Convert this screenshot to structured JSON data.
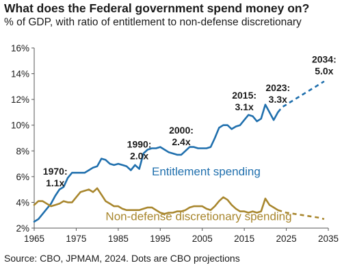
{
  "header": {
    "title": "What does the Federal government spend money on?",
    "subtitle": "% of GDP, with ratio of entitlement to non-defense discretionary"
  },
  "footer": {
    "source": "Source: CBO, JPMAM, 2024. Dots are CBO projections"
  },
  "chart_data": {
    "type": "line",
    "title": "What does the Federal government spend money on?",
    "subtitle": "% of GDP, with ratio of entitlement to non-defense discretionary",
    "xlim": [
      1965,
      2035
    ],
    "ylim": [
      2,
      16
    ],
    "x_ticks": [
      1965,
      1975,
      1985,
      1995,
      2005,
      2015,
      2025,
      2035
    ],
    "x_tick_labels": [
      "1965",
      "1975",
      "1985",
      "1995",
      "2005",
      "2015",
      "2025",
      "2035"
    ],
    "y_ticks": [
      2,
      4,
      6,
      8,
      10,
      12,
      14,
      16
    ],
    "y_tick_labels": [
      "2%",
      "4%",
      "6%",
      "8%",
      "10%",
      "12%",
      "14%",
      "16%"
    ],
    "grid": false,
    "series": [
      {
        "name": "Entitlement spending",
        "color": "#1f6fad",
        "x": [
          1965,
          1966,
          1967,
          1968,
          1969,
          1970,
          1971,
          1972,
          1973,
          1974,
          1975,
          1976,
          1977,
          1978,
          1979,
          1980,
          1981,
          1982,
          1983,
          1984,
          1985,
          1986,
          1987,
          1988,
          1989,
          1990,
          1991,
          1992,
          1993,
          1994,
          1995,
          1996,
          1997,
          1998,
          1999,
          2000,
          2001,
          2002,
          2003,
          2004,
          2005,
          2006,
          2007,
          2008,
          2009,
          2010,
          2011,
          2012,
          2013,
          2014,
          2015,
          2016,
          2017,
          2018,
          2019,
          2020,
          2021,
          2022,
          2023
        ],
        "y": [
          2.5,
          2.7,
          3.1,
          3.5,
          3.9,
          4.5,
          5.0,
          5.2,
          5.9,
          6.3,
          6.3,
          6.3,
          6.3,
          6.5,
          6.7,
          6.8,
          7.4,
          7.3,
          7.0,
          6.9,
          7.0,
          6.9,
          6.8,
          6.5,
          6.9,
          6.6,
          7.8,
          8.1,
          8.2,
          8.2,
          8.3,
          8.1,
          7.9,
          7.8,
          7.7,
          7.7,
          8.0,
          8.3,
          8.3,
          8.2,
          8.2,
          8.2,
          8.3,
          9.0,
          9.8,
          10.0,
          10.0,
          9.7,
          9.9,
          10.0,
          10.4,
          10.8,
          10.7,
          10.3,
          10.5,
          11.6,
          11.0,
          10.4,
          11.0
        ],
        "annotations": [
          {
            "x": 1970,
            "y": 4.5,
            "lines": [
              "1970:",
              "1.1x"
            ]
          },
          {
            "x": 1990,
            "y": 6.6,
            "lines": [
              "1990:",
              "2.0x"
            ]
          },
          {
            "x": 2000,
            "y": 7.7,
            "lines": [
              "2000:",
              "2.4x"
            ]
          },
          {
            "x": 2015,
            "y": 10.4,
            "lines": [
              "2015:",
              "3.1x"
            ]
          },
          {
            "x": 2023,
            "y": 11.0,
            "lines": [
              "2023:",
              "3.3x"
            ]
          },
          {
            "x": 2034,
            "y": 13.2,
            "lines": [
              "2034:",
              "5.0x"
            ]
          }
        ]
      },
      {
        "name": "Entitlement spending (CBO projection)",
        "color": "#1f6fad",
        "dashed": true,
        "x": [
          2023,
          2024,
          2025,
          2026,
          2027,
          2028,
          2029,
          2030,
          2031,
          2032,
          2033,
          2034
        ],
        "y": [
          11.0,
          11.4,
          11.6,
          11.8,
          12.0,
          12.2,
          12.4,
          12.6,
          12.8,
          13.0,
          13.2,
          13.4
        ]
      },
      {
        "name": "Non-defense discretionary spending",
        "color": "#a8862d",
        "x": [
          1965,
          1966,
          1967,
          1968,
          1969,
          1970,
          1971,
          1972,
          1973,
          1974,
          1975,
          1976,
          1977,
          1978,
          1979,
          1980,
          1981,
          1982,
          1983,
          1984,
          1985,
          1986,
          1987,
          1988,
          1989,
          1990,
          1991,
          1992,
          1993,
          1994,
          1995,
          1996,
          1997,
          1998,
          1999,
          2000,
          2001,
          2002,
          2003,
          2004,
          2005,
          2006,
          2007,
          2008,
          2009,
          2010,
          2011,
          2012,
          2013,
          2014,
          2015,
          2016,
          2017,
          2018,
          2019,
          2020,
          2021,
          2022,
          2023
        ],
        "y": [
          3.8,
          4.1,
          4.1,
          3.9,
          3.7,
          3.8,
          3.9,
          4.1,
          4.0,
          4.0,
          4.4,
          4.8,
          4.9,
          5.0,
          4.8,
          5.1,
          4.6,
          4.1,
          3.9,
          3.7,
          3.7,
          3.5,
          3.4,
          3.4,
          3.4,
          3.4,
          3.5,
          3.6,
          3.6,
          3.4,
          3.2,
          3.1,
          3.2,
          3.2,
          3.3,
          3.3,
          3.4,
          3.6,
          3.7,
          3.7,
          3.7,
          3.5,
          3.4,
          3.7,
          4.1,
          4.4,
          4.2,
          3.8,
          3.5,
          3.3,
          3.3,
          3.2,
          3.3,
          3.2,
          3.3,
          4.3,
          3.8,
          3.6,
          3.4
        ],
        "color_label": "#a8862d"
      },
      {
        "name": "Non-defense discretionary spending (CBO projection)",
        "color": "#a8862d",
        "dashed": true,
        "x": [
          2023,
          2025,
          2027,
          2029,
          2031,
          2033,
          2034
        ],
        "y": [
          3.4,
          3.2,
          3.1,
          3.0,
          2.9,
          2.8,
          2.7
        ]
      }
    ],
    "series_labels": [
      {
        "text": "Entitlement spending",
        "x": 1993,
        "y": 6.1,
        "color": "#1f6fad"
      },
      {
        "text": "Non-defense discretionary spending",
        "x": 1982,
        "y": 2.6,
        "color": "#a8862d"
      }
    ]
  }
}
